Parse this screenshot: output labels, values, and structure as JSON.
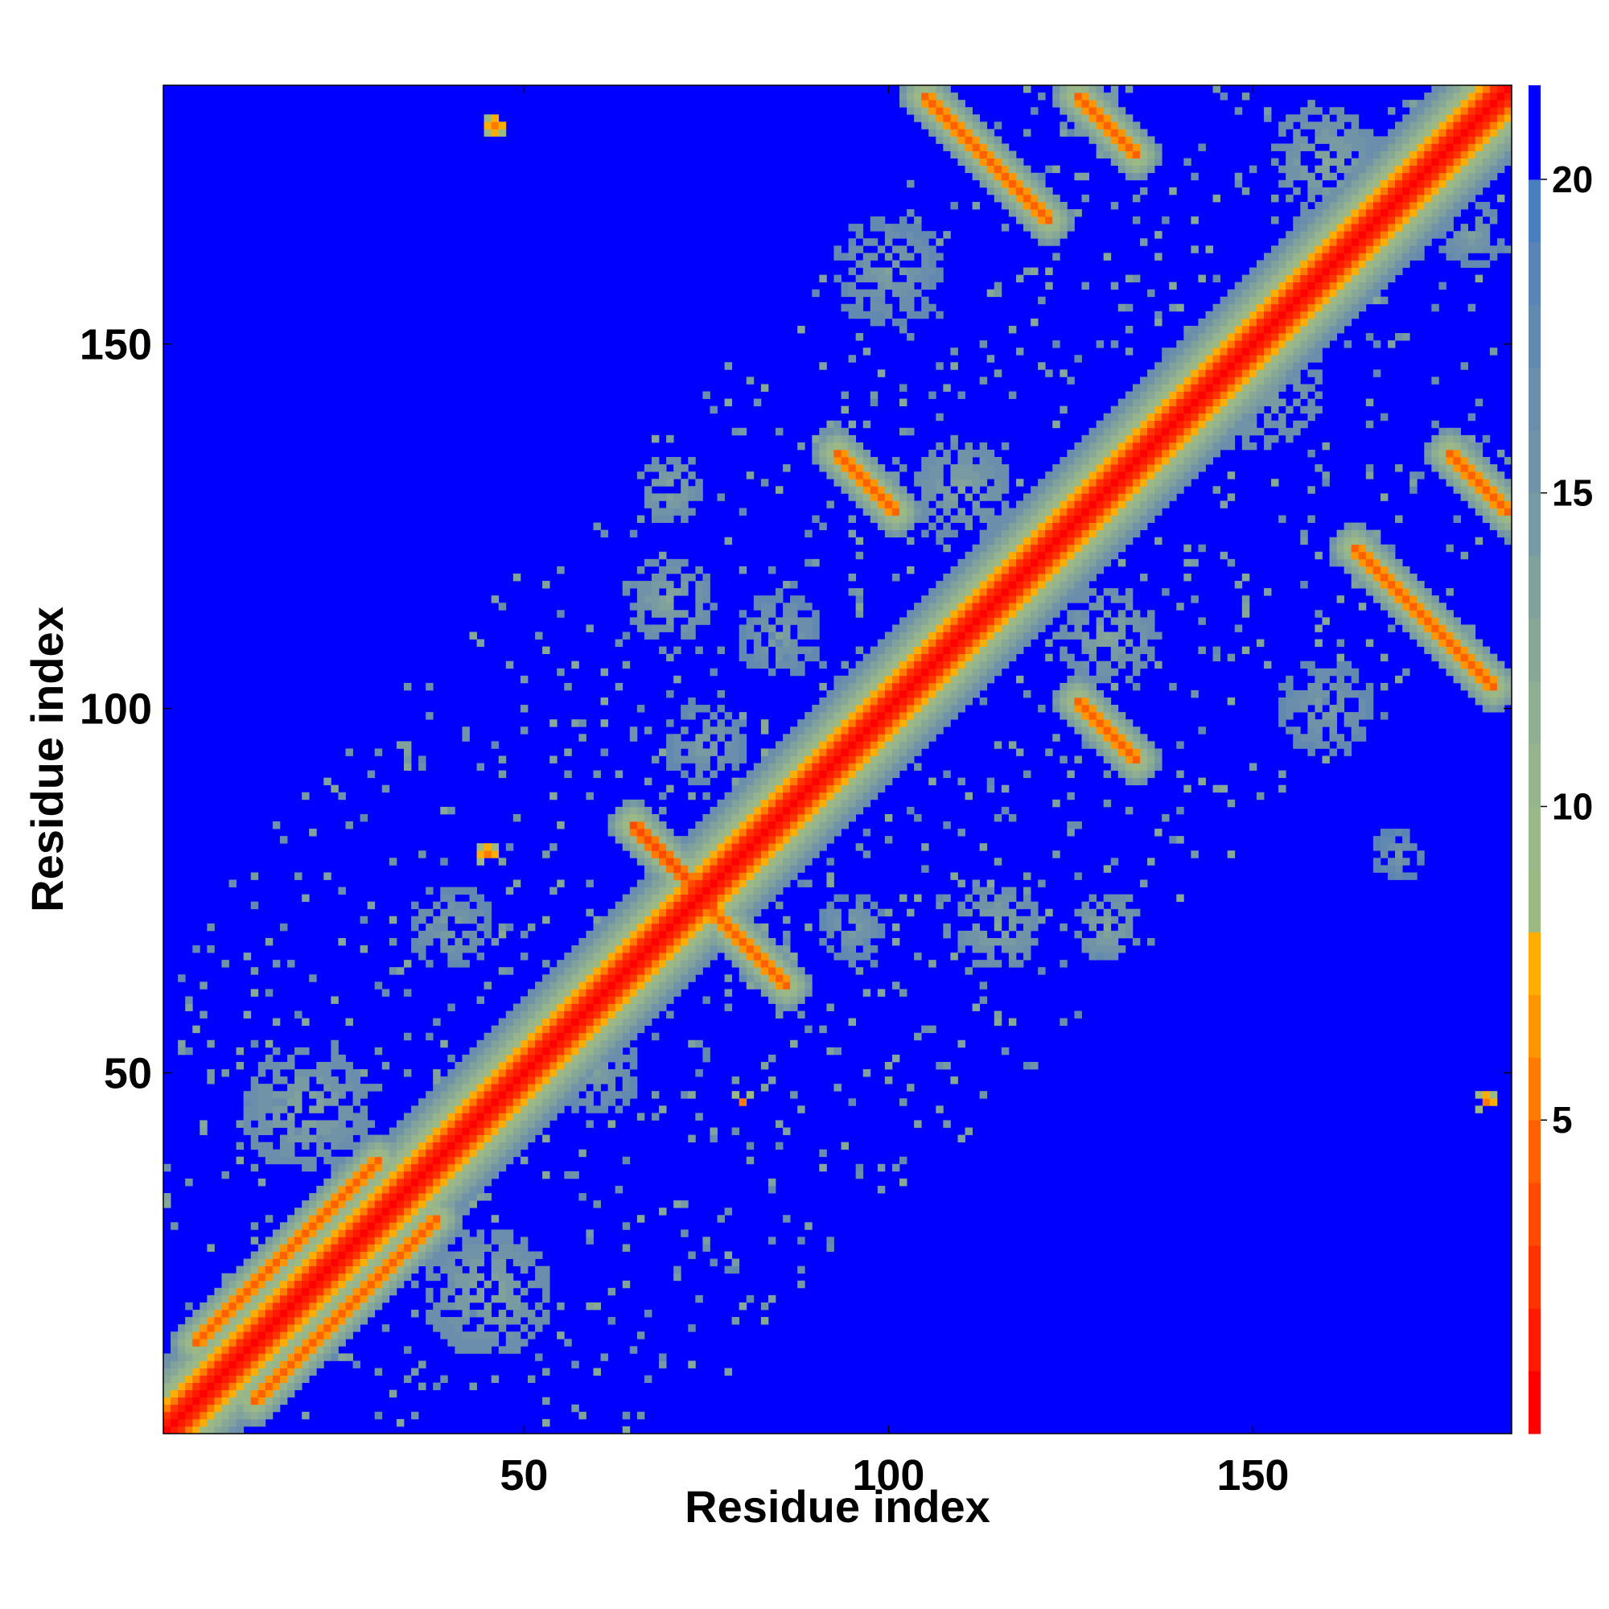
{
  "chart_data": {
    "type": "heatmap",
    "title": "",
    "xlabel": "Residue index",
    "ylabel": "Residue index",
    "n_residues": 185,
    "xlim": [
      1,
      185
    ],
    "ylim": [
      1,
      185
    ],
    "xticks": [
      50,
      100,
      150
    ],
    "yticks": [
      50,
      100,
      150
    ],
    "grid": false,
    "colorbar": {
      "range": [
        0,
        21.5
      ],
      "ticks": [
        5,
        10,
        15,
        20
      ],
      "stops": [
        {
          "upto": 1,
          "color": "#ff0000"
        },
        {
          "upto": 2,
          "color": "#ff1a00"
        },
        {
          "upto": 3,
          "color": "#ff3300"
        },
        {
          "upto": 4,
          "color": "#ff4a00"
        },
        {
          "upto": 5,
          "color": "#ff6000"
        },
        {
          "upto": 6,
          "color": "#ff7a00"
        },
        {
          "upto": 7,
          "color": "#ff9500"
        },
        {
          "upto": 8,
          "color": "#ffad00"
        },
        {
          "upto": 9,
          "color": "#9db983"
        },
        {
          "upto": 10,
          "color": "#9bb88a"
        },
        {
          "upto": 11,
          "color": "#96b48d"
        },
        {
          "upto": 12,
          "color": "#8fae92"
        },
        {
          "upto": 13,
          "color": "#88a897"
        },
        {
          "upto": 14,
          "color": "#80a19c"
        },
        {
          "upto": 15,
          "color": "#789aa2"
        },
        {
          "upto": 16,
          "color": "#7093a7"
        },
        {
          "upto": 17,
          "color": "#6a8eab"
        },
        {
          "upto": 18,
          "color": "#6289b0"
        },
        {
          "upto": 19,
          "color": "#5a84b5"
        },
        {
          "upto": 20,
          "color": "#4a7fbf"
        },
        {
          "upto": 21.5,
          "color": "#0000ff"
        }
      ]
    },
    "contact_bands": [
      {
        "x": [
          65,
          76
        ],
        "y": [
          84,
          73
        ],
        "min": 4
      },
      {
        "x": [
          76,
          86
        ],
        "y": [
          72,
          62
        ],
        "min": 5
      },
      {
        "x": [
          105,
          122
        ],
        "y": [
          184,
          167
        ],
        "min": 5
      },
      {
        "x": [
          126,
          134
        ],
        "y": [
          184,
          176
        ],
        "min": 5
      },
      {
        "x": [
          93,
          101
        ],
        "y": [
          135,
          127
        ],
        "min": 5
      },
      {
        "x": [
          126,
          134
        ],
        "y": [
          101,
          93
        ],
        "min": 5
      },
      {
        "x": [
          164,
          183
        ],
        "y": [
          122,
          103
        ],
        "min": 5
      },
      {
        "x": [
          177,
          185
        ],
        "y": [
          135,
          127
        ],
        "min": 5
      },
      {
        "x": [
          55,
          62
        ],
        "y": [
          55,
          62
        ],
        "min": 6
      },
      {
        "x": [
          135,
          146
        ],
        "y": [
          135,
          146
        ],
        "min": 6
      },
      {
        "x": [
          5,
          30
        ],
        "y": [
          13,
          38
        ],
        "min": 5
      },
      {
        "x": [
          13,
          38
        ],
        "y": [
          5,
          30
        ],
        "min": 5
      }
    ],
    "contact_patches": [
      {
        "x": 46,
        "y": 180,
        "r": 2,
        "min": 6
      },
      {
        "x": 45,
        "y": 80,
        "r": 2,
        "min": 6
      },
      {
        "x": 80,
        "y": 46,
        "r": 2,
        "min": 6
      },
      {
        "x": 182,
        "y": 46,
        "r": 2,
        "min": 6
      },
      {
        "x": 70,
        "y": 130,
        "r": 5,
        "min": 13
      },
      {
        "x": 70,
        "y": 115,
        "r": 6,
        "min": 13
      },
      {
        "x": 130,
        "y": 70,
        "r": 5,
        "min": 13
      },
      {
        "x": 115,
        "y": 70,
        "r": 6,
        "min": 13
      },
      {
        "x": 110,
        "y": 130,
        "r": 7,
        "min": 13
      },
      {
        "x": 130,
        "y": 110,
        "r": 7,
        "min": 13
      },
      {
        "x": 150,
        "y": 145,
        "r": 10,
        "min": 13
      },
      {
        "x": 160,
        "y": 100,
        "r": 7,
        "min": 14
      },
      {
        "x": 100,
        "y": 160,
        "r": 8,
        "min": 14
      },
      {
        "x": 20,
        "y": 45,
        "r": 9,
        "min": 13
      },
      {
        "x": 45,
        "y": 20,
        "r": 9,
        "min": 13
      },
      {
        "x": 160,
        "y": 175,
        "r": 8,
        "min": 13
      },
      {
        "x": 180,
        "y": 165,
        "r": 5,
        "min": 14
      },
      {
        "x": 40,
        "y": 70,
        "r": 6,
        "min": 14
      },
      {
        "x": 85,
        "y": 110,
        "r": 6,
        "min": 14
      },
      {
        "x": 60,
        "y": 50,
        "r": 6,
        "min": 14
      },
      {
        "x": 75,
        "y": 95,
        "r": 6,
        "min": 14
      },
      {
        "x": 95,
        "y": 70,
        "r": 5,
        "min": 14
      },
      {
        "x": 170,
        "y": 80,
        "r": 4,
        "min": 15
      }
    ]
  }
}
